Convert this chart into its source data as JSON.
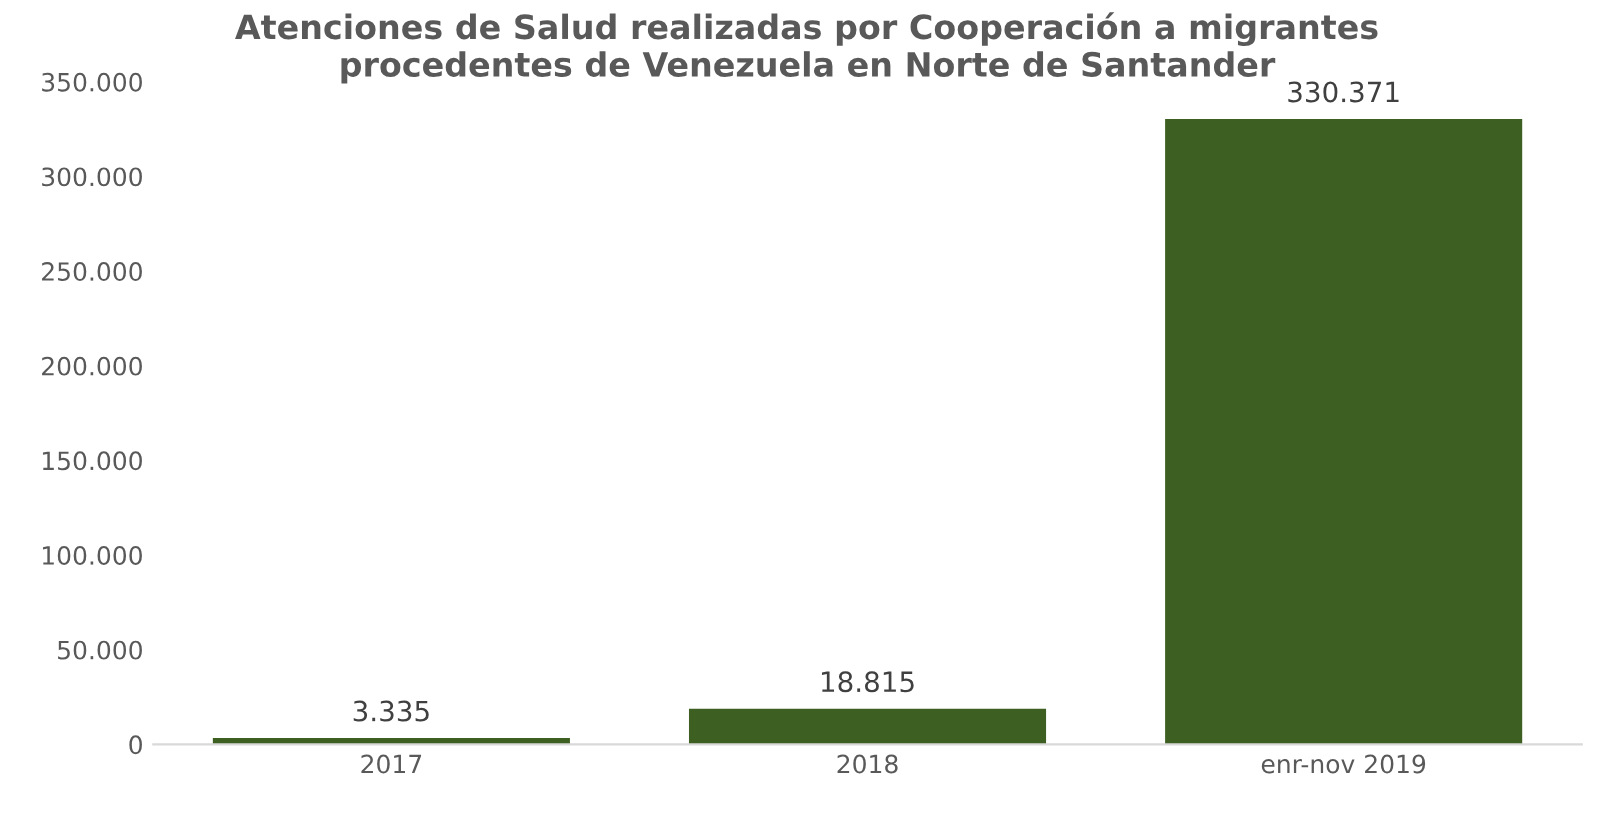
{
  "chart_data": {
    "type": "bar",
    "title": "Atenciones de Salud realizadas por Cooperación a migrantes\nprocedentes de Venezuela en Norte de Santander",
    "categories": [
      "2017",
      "2018",
      "enr-nov 2019"
    ],
    "values": [
      3335,
      18815,
      330371
    ],
    "value_labels": [
      "3.335",
      "18.815",
      "330.371"
    ],
    "color": "#3d5f22",
    "ylim": [
      0,
      350000
    ],
    "yticks": [
      {
        "value": 0,
        "label": "0"
      },
      {
        "value": 50000,
        "label": "50.000"
      },
      {
        "value": 100000,
        "label": "100.000"
      },
      {
        "value": 150000,
        "label": "150.000"
      },
      {
        "value": 200000,
        "label": "200.000"
      },
      {
        "value": 250000,
        "label": "250.000"
      },
      {
        "value": 300000,
        "label": "300.000"
      },
      {
        "value": 350000,
        "label": "350.000"
      }
    ],
    "grid": false
  }
}
